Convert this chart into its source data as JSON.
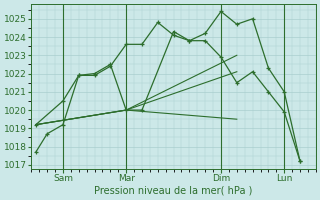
{
  "xlabel": "Pression niveau de la mer( hPa )",
  "ylim": [
    1016.8,
    1025.8
  ],
  "yticks": [
    1017,
    1018,
    1019,
    1020,
    1021,
    1022,
    1023,
    1024,
    1025
  ],
  "xtick_labels": [
    "Sam",
    "Mar",
    "Dim",
    "Lun"
  ],
  "xtick_positions": [
    14,
    42,
    84,
    112
  ],
  "xlim": [
    0,
    126
  ],
  "background_color": "#cce8e8",
  "grid_color": "#aacfcf",
  "line_color": "#2d6e2d",
  "series1_x": [
    2,
    7,
    14,
    21,
    28,
    35,
    42,
    49,
    56,
    63,
    70,
    77,
    84,
    91,
    98,
    105,
    112,
    119
  ],
  "series1_y": [
    1017.7,
    1018.7,
    1019.2,
    1021.9,
    1021.9,
    1022.4,
    1023.6,
    1023.6,
    1024.8,
    1024.1,
    1023.8,
    1024.2,
    1025.4,
    1024.7,
    1025.0,
    1022.3,
    1021.0,
    1017.2
  ],
  "series2_x": [
    2,
    14,
    21,
    28,
    35,
    42,
    49,
    63,
    70,
    77,
    84,
    91,
    98,
    105,
    112,
    119
  ],
  "series2_y": [
    1019.2,
    1020.5,
    1021.9,
    1022.0,
    1022.5,
    1020.0,
    1020.0,
    1024.3,
    1023.8,
    1023.8,
    1022.9,
    1021.5,
    1022.1,
    1021.0,
    1019.9,
    1017.2
  ],
  "line1_x": [
    2,
    42,
    91
  ],
  "line1_y": [
    1019.2,
    1020.0,
    1023.0
  ],
  "line2_x": [
    2,
    42,
    91
  ],
  "line2_y": [
    1019.2,
    1020.0,
    1022.1
  ],
  "line3_x": [
    2,
    42,
    91
  ],
  "line3_y": [
    1019.2,
    1020.0,
    1019.5
  ],
  "vline_positions": [
    14,
    42,
    84,
    112
  ]
}
